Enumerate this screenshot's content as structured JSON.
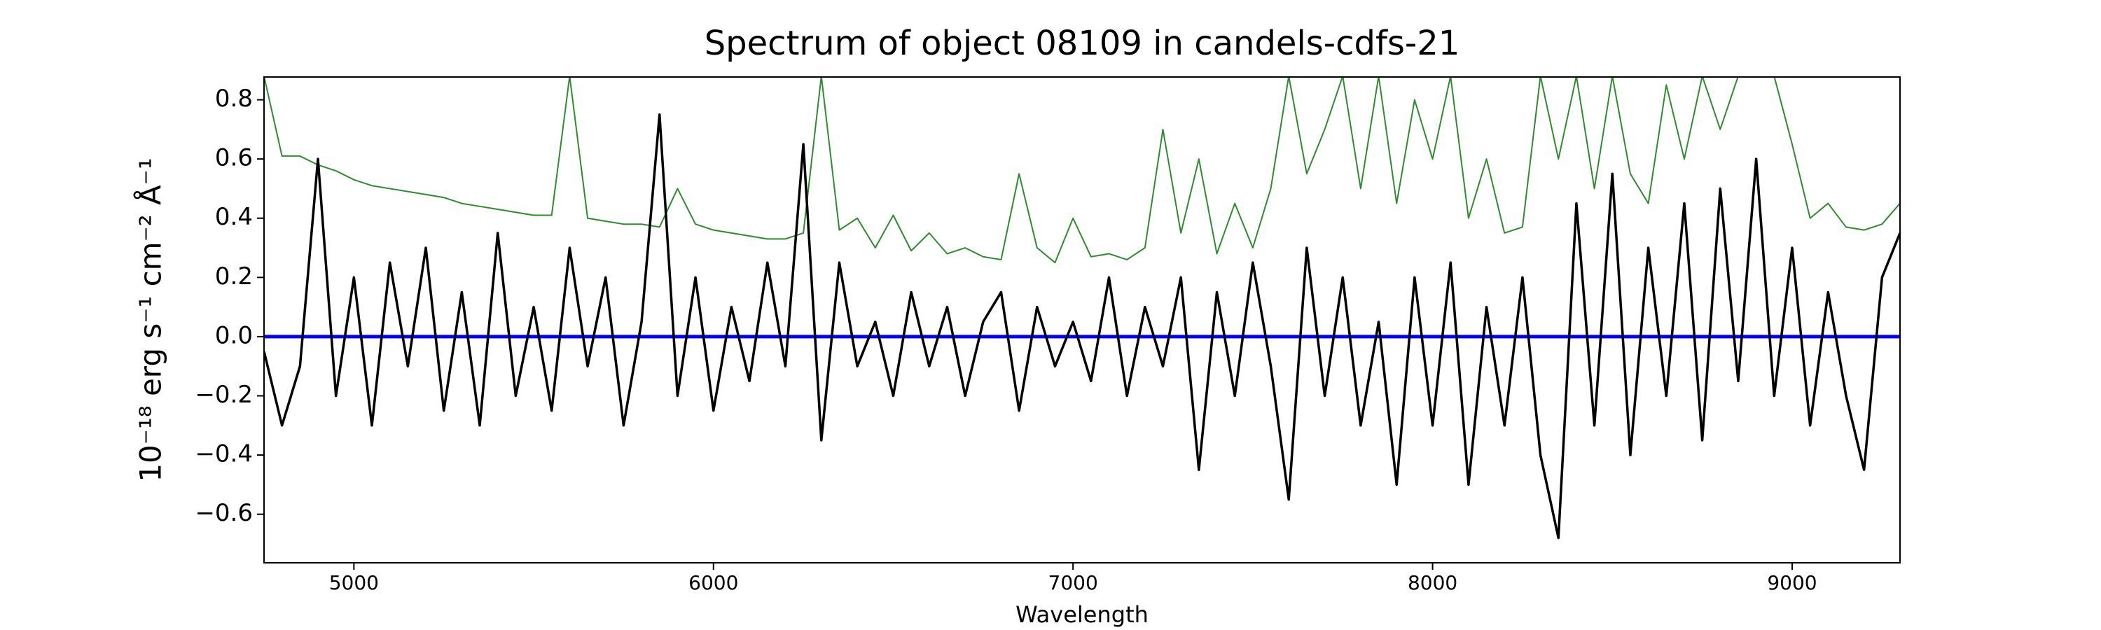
{
  "chart_data": {
    "type": "line",
    "title": "Spectrum of object 08109 in candels-cdfs-21",
    "xlabel": "Wavelength",
    "ylabel": "10⁻¹⁸ erg s⁻¹ cm⁻² Å⁻¹",
    "x": [
      4750,
      4800,
      4850,
      4900,
      4950,
      5000,
      5050,
      5100,
      5150,
      5200,
      5250,
      5300,
      5350,
      5400,
      5450,
      5500,
      5550,
      5600,
      5650,
      5700,
      5750,
      5800,
      5850,
      5900,
      5950,
      6000,
      6050,
      6100,
      6150,
      6200,
      6250,
      6300,
      6350,
      6400,
      6450,
      6500,
      6550,
      6600,
      6650,
      6700,
      6750,
      6800,
      6850,
      6900,
      6950,
      7000,
      7050,
      7100,
      7150,
      7200,
      7250,
      7300,
      7350,
      7400,
      7450,
      7500,
      7550,
      7600,
      7650,
      7700,
      7750,
      7800,
      7850,
      7900,
      7950,
      8000,
      8050,
      8100,
      8150,
      8200,
      8250,
      8300,
      8350,
      8400,
      8450,
      8500,
      8550,
      8600,
      8650,
      8700,
      8750,
      8800,
      8850,
      8900,
      8950,
      9000,
      9050,
      9100,
      9150,
      9200,
      9250,
      9300
    ],
    "series": [
      {
        "color": "#2e8b2e",
        "width": 2,
        "values": [
          0.88,
          0.61,
          0.61,
          0.58,
          0.56,
          0.53,
          0.51,
          0.5,
          0.49,
          0.48,
          0.47,
          0.45,
          0.44,
          0.43,
          0.42,
          0.41,
          0.41,
          0.88,
          0.4,
          0.39,
          0.38,
          0.38,
          0.37,
          0.5,
          0.38,
          0.36,
          0.35,
          0.34,
          0.33,
          0.33,
          0.35,
          0.88,
          0.36,
          0.4,
          0.3,
          0.41,
          0.29,
          0.35,
          0.28,
          0.3,
          0.27,
          0.26,
          0.55,
          0.3,
          0.25,
          0.4,
          0.27,
          0.28,
          0.26,
          0.3,
          0.7,
          0.35,
          0.6,
          0.28,
          0.45,
          0.3,
          0.5,
          0.88,
          0.55,
          0.7,
          0.88,
          0.5,
          0.88,
          0.45,
          0.8,
          0.6,
          0.88,
          0.4,
          0.6,
          0.35,
          0.37,
          0.88,
          0.6,
          0.88,
          0.5,
          0.88,
          0.55,
          0.45,
          0.85,
          0.6,
          0.88,
          0.7,
          0.88,
          0.88,
          0.88,
          0.65,
          0.4,
          0.45,
          0.37,
          0.36,
          0.38,
          0.45
        ]
      },
      {
        "color": "#0000ff",
        "width": 5,
        "values": [
          0,
          0,
          0,
          0,
          0,
          0,
          0,
          0,
          0,
          0,
          0,
          0,
          0,
          0,
          0,
          0,
          0,
          0,
          0,
          0,
          0,
          0,
          0,
          0,
          0,
          0,
          0,
          0,
          0,
          0,
          0,
          0,
          0,
          0,
          0,
          0,
          0,
          0,
          0,
          0,
          0,
          0,
          0,
          0,
          0,
          0,
          0,
          0,
          0,
          0,
          0,
          0,
          0,
          0,
          0,
          0,
          0,
          0,
          0,
          0,
          0,
          0,
          0,
          0,
          0,
          0,
          0,
          0,
          0,
          0,
          0,
          0,
          0,
          0,
          0,
          0,
          0,
          0,
          0,
          0,
          0,
          0,
          0,
          0,
          0,
          0,
          0,
          0,
          0,
          0,
          0,
          0
        ]
      },
      {
        "color": "#000000",
        "width": 3.5,
        "values": [
          -0.05,
          -0.3,
          -0.1,
          0.6,
          -0.2,
          0.2,
          -0.3,
          0.25,
          -0.1,
          0.3,
          -0.25,
          0.15,
          -0.3,
          0.35,
          -0.2,
          0.1,
          -0.25,
          0.3,
          -0.1,
          0.2,
          -0.3,
          0.05,
          0.75,
          -0.2,
          0.2,
          -0.25,
          0.1,
          -0.15,
          0.25,
          -0.1,
          0.65,
          -0.35,
          0.25,
          -0.1,
          0.05,
          -0.2,
          0.15,
          -0.1,
          0.1,
          -0.2,
          0.05,
          0.15,
          -0.25,
          0.1,
          -0.1,
          0.05,
          -0.15,
          0.2,
          -0.2,
          0.1,
          -0.1,
          0.2,
          -0.45,
          0.15,
          -0.2,
          0.25,
          -0.1,
          -0.55,
          0.3,
          -0.2,
          0.2,
          -0.3,
          0.05,
          -0.5,
          0.2,
          -0.3,
          0.25,
          -0.5,
          0.1,
          -0.3,
          0.2,
          -0.4,
          -0.68,
          0.45,
          -0.3,
          0.55,
          -0.4,
          0.3,
          -0.2,
          0.45,
          -0.35,
          0.5,
          -0.15,
          0.6,
          -0.2,
          0.3,
          -0.3,
          0.15,
          -0.2,
          -0.45,
          0.2,
          0.35
        ]
      }
    ],
    "xlim": [
      4750,
      9300
    ],
    "xticks": [
      5000,
      6000,
      7000,
      8000,
      9000
    ],
    "ylim": [
      -0.764,
      0.877
    ],
    "yticks": [
      {
        "value": -0.6,
        "label": "−0.6"
      },
      {
        "value": -0.4,
        "label": "−0.4"
      },
      {
        "value": -0.2,
        "label": "−0.2"
      },
      {
        "value": 0,
        "label": "0.0"
      },
      0.2,
      0.4,
      0.6,
      0.8
    ]
  }
}
